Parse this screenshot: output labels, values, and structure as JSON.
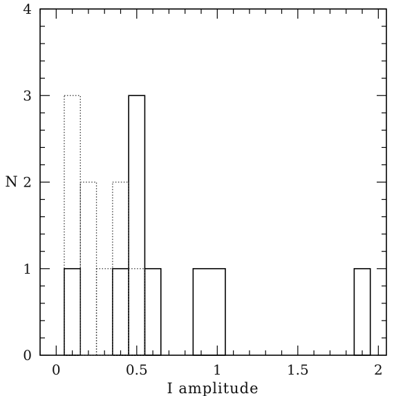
{
  "chart_data": {
    "type": "histogram",
    "xlabel": "I amplitude",
    "ylabel": "N",
    "xlim": [
      -0.1,
      2.05
    ],
    "ylim": [
      0,
      4
    ],
    "x_ticks": [
      {
        "value": 0,
        "label": "0"
      },
      {
        "value": 0.5,
        "label": "0.5"
      },
      {
        "value": 1,
        "label": "1"
      },
      {
        "value": 1.5,
        "label": "1.5"
      },
      {
        "value": 2,
        "label": "2"
      }
    ],
    "y_ticks": [
      {
        "value": 0,
        "label": "0"
      },
      {
        "value": 1,
        "label": "1"
      },
      {
        "value": 2,
        "label": "2"
      },
      {
        "value": 3,
        "label": "3"
      },
      {
        "value": 4,
        "label": "4"
      }
    ],
    "grid": false,
    "series": [
      {
        "style": "solid",
        "bins": [
          {
            "x0": 0.05,
            "x1": 0.15,
            "count": 1
          },
          {
            "x0": 0.35,
            "x1": 0.45,
            "count": 1
          },
          {
            "x0": 0.45,
            "x1": 0.55,
            "count": 3
          },
          {
            "x0": 0.55,
            "x1": 0.65,
            "count": 1
          },
          {
            "x0": 0.85,
            "x1": 1.05,
            "count": 1
          },
          {
            "x0": 1.85,
            "x1": 1.95,
            "count": 1
          }
        ]
      },
      {
        "style": "dotted",
        "bins": [
          {
            "x0": 0.05,
            "x1": 0.15,
            "count": 3
          },
          {
            "x0": 0.15,
            "x1": 0.25,
            "count": 2
          },
          {
            "x0": 0.25,
            "x1": 0.35,
            "count": 1
          },
          {
            "x0": 0.35,
            "x1": 0.45,
            "count": 2
          },
          {
            "x0": 0.45,
            "x1": 0.55,
            "count": 1
          }
        ]
      }
    ]
  }
}
